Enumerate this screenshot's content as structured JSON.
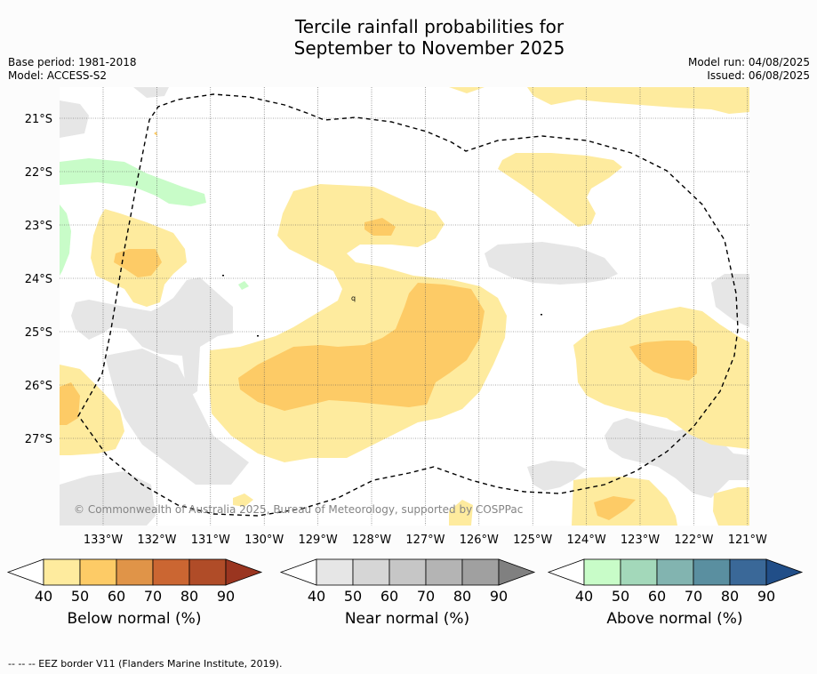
{
  "title": {
    "line1": "Tercile rainfall probabilities for",
    "line2": "September to November 2025"
  },
  "meta": {
    "base_period": "Base period: 1981-2018",
    "model": "Model: ACCESS-S2",
    "model_run": "Model run: 04/08/2025",
    "issued": "Issued: 06/08/2025"
  },
  "map": {
    "lat_labels": [
      "21°S",
      "22°S",
      "23°S",
      "24°S",
      "25°S",
      "26°S",
      "27°S"
    ],
    "lon_labels": [
      "133°W",
      "132°W",
      "131°W",
      "130°W",
      "129°W",
      "128°W",
      "127°W",
      "126°W",
      "125°W",
      "124°W",
      "123°W",
      "122°W",
      "121°W"
    ],
    "copyright": "© Commonwealth of Australia 2025, Bureau of Meteorology, supported by COSPPac",
    "colors": {
      "below_40": "#feeb9e",
      "below_50": "#fdcb66",
      "near_40": "#e6e6e6",
      "above_40": "#c8fcc8"
    }
  },
  "colorbars": [
    {
      "title": "Below normal (%)",
      "ticks": [
        "40",
        "50",
        "60",
        "70",
        "80",
        "90"
      ],
      "colors": [
        "#feeb9e",
        "#fdcb66",
        "#e09448",
        "#cb6632",
        "#b04c28",
        "#9a3520"
      ]
    },
    {
      "title": "Near normal (%)",
      "ticks": [
        "40",
        "50",
        "60",
        "70",
        "80",
        "90"
      ],
      "colors": [
        "#e6e6e6",
        "#d6d6d6",
        "#c6c6c6",
        "#b4b4b4",
        "#a0a0a0",
        "#808080"
      ]
    },
    {
      "title": "Above normal (%)",
      "ticks": [
        "40",
        "50",
        "60",
        "70",
        "80",
        "90"
      ],
      "colors": [
        "#c8fcc8",
        "#a3d8ba",
        "#82b4b0",
        "#5a8fa0",
        "#3a6898",
        "#214e88"
      ]
    }
  ],
  "footer": "--  --  -- EEZ border V11 (Flanders Marine Institute, 2019)."
}
